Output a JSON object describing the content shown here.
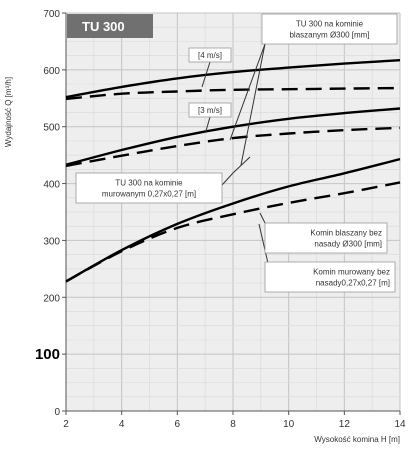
{
  "chart_data": {
    "type": "line",
    "model_label": "TU 300",
    "xlabel": "Wysokość komina H [m]",
    "ylabel": "Wydajność Q [m³/h]",
    "xlim": [
      2,
      14
    ],
    "ylim": [
      0,
      700
    ],
    "x_ticks": [
      "2",
      "4",
      "6",
      "8",
      "10",
      "12",
      "14"
    ],
    "y_ticks": [
      "0",
      "100",
      "200",
      "300",
      "400",
      "500",
      "600",
      "700"
    ],
    "grid": true,
    "series": [
      {
        "style": "solid",
        "x": [
          2,
          4,
          6,
          8,
          10,
          12,
          14
        ],
        "y": [
          552,
          570,
          585,
          596,
          604,
          611,
          617
        ]
      },
      {
        "style": "dashed",
        "x": [
          2,
          4,
          6,
          8,
          10,
          12,
          14
        ],
        "y": [
          549,
          558,
          562,
          565,
          566,
          567,
          568
        ]
      },
      {
        "style": "solid",
        "x": [
          2,
          4,
          6,
          8,
          10,
          12,
          14
        ],
        "y": [
          433,
          459,
          482,
          500,
          514,
          524,
          532
        ]
      },
      {
        "style": "dashed",
        "x": [
          2,
          4,
          6,
          8,
          10,
          12,
          14
        ],
        "y": [
          431,
          449,
          466,
          480,
          488,
          494,
          498
        ]
      },
      {
        "style": "solid",
        "x": [
          2,
          4,
          6,
          8,
          10,
          12,
          14
        ],
        "y": [
          228,
          283,
          329,
          365,
          395,
          418,
          443
        ]
      },
      {
        "style": "dashed",
        "x": [
          2,
          4,
          6,
          8,
          10,
          12,
          14
        ],
        "y": [
          228,
          281,
          322,
          346,
          366,
          383,
          402
        ]
      }
    ],
    "annotations": [
      {
        "lines": [
          "TU 300 na kominie",
          "blaszanym Ø300 [mm]"
        ]
      },
      {
        "lines": [
          "[4 m/s]"
        ]
      },
      {
        "lines": [
          "[3 m/s]"
        ]
      },
      {
        "lines": [
          "TU 300 na kominie",
          "murowanym 0,27x0,27 [m]"
        ]
      },
      {
        "lines": [
          "Komin blaszany bez",
          "nasady Ø300 [mm]"
        ]
      },
      {
        "lines": [
          "Komin murowany bez",
          "nasady0,27x0,27 [m]"
        ]
      }
    ]
  }
}
